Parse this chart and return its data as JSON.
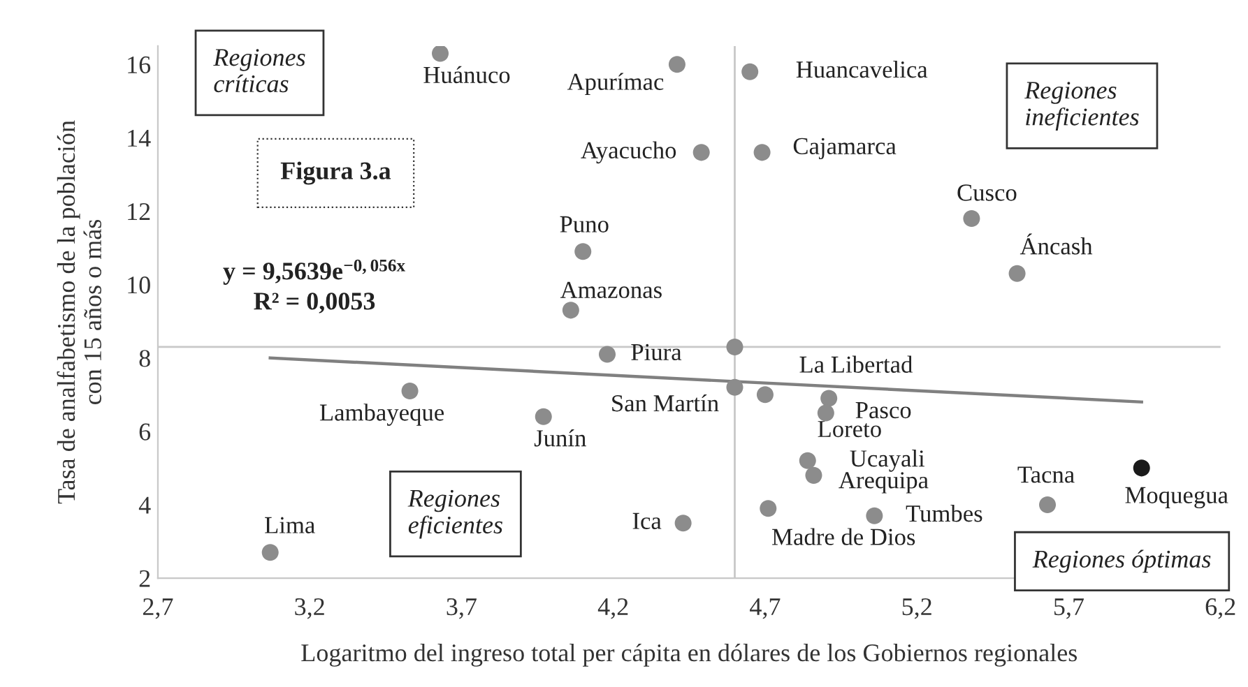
{
  "chart_data": {
    "type": "scatter",
    "xlabel": "Logaritmo del ingreso total per cápita en dólares de los Gobiernos regionales",
    "ylabel": "Tasa de analfabetismo de la población\ncon 15 años o más",
    "xlim": [
      2.7,
      6.2
    ],
    "ylim": [
      2,
      16.5
    ],
    "xticks": [
      {
        "value": 2.7,
        "label": "2,7"
      },
      {
        "value": 3.2,
        "label": "3,2"
      },
      {
        "value": 3.7,
        "label": "3,7"
      },
      {
        "value": 4.2,
        "label": "4,2"
      },
      {
        "value": 4.7,
        "label": "4,7"
      },
      {
        "value": 5.2,
        "label": "5,2"
      },
      {
        "value": 5.7,
        "label": "5,7"
      },
      {
        "value": 6.2,
        "label": "6,2"
      }
    ],
    "yticks": [
      2,
      4,
      6,
      8,
      10,
      12,
      14,
      16
    ],
    "grid": false,
    "marker": "circle",
    "series": [
      {
        "x": [
          3.63,
          4.41,
          4.49,
          4.65,
          4.69,
          4.1,
          4.06,
          4.18,
          5.38,
          5.53,
          4.6,
          4.7,
          4.91,
          4.9,
          4.84,
          4.86,
          4.71,
          5.06,
          5.63,
          5.94,
          3.53,
          3.97,
          4.43,
          3.07,
          4.6
        ],
        "values": [
          16.3,
          16.0,
          13.6,
          15.8,
          13.6,
          10.9,
          9.3,
          8.1,
          11.8,
          10.3,
          7.2,
          7.0,
          6.9,
          6.5,
          5.2,
          4.8,
          3.9,
          3.7,
          4.0,
          5.0,
          7.1,
          6.4,
          3.5,
          2.7,
          8.3
        ],
        "colors": [
          "#8c8c8c",
          "#8c8c8c",
          "#8c8c8c",
          "#8c8c8c",
          "#8c8c8c",
          "#8c8c8c",
          "#8c8c8c",
          "#8c8c8c",
          "#8c8c8c",
          "#8c8c8c",
          "#8c8c8c",
          "#8c8c8c",
          "#8c8c8c",
          "#8c8c8c",
          "#8c8c8c",
          "#8c8c8c",
          "#8c8c8c",
          "#8c8c8c",
          "#8c8c8c",
          "#1a1a1a",
          "#8c8c8c",
          "#8c8c8c",
          "#8c8c8c",
          "#8c8c8c",
          "#8c8c8c"
        ]
      },
      {
        "type": "line",
        "x": [
          3.07,
          4.5,
          5.94
        ],
        "values": [
          8.0,
          7.4,
          6.8
        ],
        "color": "#808080",
        "marker": "none"
      }
    ],
    "ref_lines": [
      {
        "axis": "x",
        "value": 4.6,
        "color": "#c8c8c8"
      },
      {
        "axis": "y",
        "value": 8.3,
        "color": "#c8c8c8"
      }
    ],
    "annotations": [
      {
        "text": "Huánuco",
        "x": 3.63,
        "y": 16.3
      },
      {
        "text": "Apurímac",
        "x": 4.41,
        "y": 16.0
      },
      {
        "text": "Ayacucho",
        "x": 4.49,
        "y": 13.6
      },
      {
        "text": "Huancavelica",
        "x": 4.65,
        "y": 15.8
      },
      {
        "text": "Cajamarca",
        "x": 4.69,
        "y": 13.6
      },
      {
        "text": "Puno",
        "x": 4.1,
        "y": 10.9
      },
      {
        "text": "Amazonas",
        "x": 4.06,
        "y": 9.3
      },
      {
        "text": "Piura",
        "x": 4.18,
        "y": 8.1
      },
      {
        "text": "Cusco",
        "x": 5.38,
        "y": 11.8
      },
      {
        "text": "Áncash",
        "x": 5.53,
        "y": 10.3
      },
      {
        "text": "San Martín",
        "x": 4.6,
        "y": 7.2
      },
      {
        "text": "La Libertad",
        "x": 4.7,
        "y": 7.0
      },
      {
        "text": "Pasco",
        "x": 4.91,
        "y": 6.9
      },
      {
        "text": "Loreto",
        "x": 4.9,
        "y": 6.5
      },
      {
        "text": "Ucayali",
        "x": 4.84,
        "y": 5.2
      },
      {
        "text": "Arequipa",
        "x": 4.86,
        "y": 4.8
      },
      {
        "text": "Madre de Dios",
        "x": 4.71,
        "y": 3.9
      },
      {
        "text": "Tumbes",
        "x": 5.06,
        "y": 3.7
      },
      {
        "text": "Tacna",
        "x": 5.63,
        "y": 4.0
      },
      {
        "text": "Moquegua",
        "x": 5.94,
        "y": 5.0
      },
      {
        "text": "Lambayeque",
        "x": 3.53,
        "y": 7.1
      },
      {
        "text": "Junín",
        "x": 3.97,
        "y": 6.4
      },
      {
        "text": "Ica",
        "x": 4.43,
        "y": 3.5
      },
      {
        "text": "Lima",
        "x": 3.07,
        "y": 2.7
      },
      "Regiones\ncríticas",
      "Figura 3.a",
      "y = 9,5639e$^{−0,056x}$\nR² = 0,0053",
      "Regiones\nineficientes",
      "Regiones\neficientes",
      "Regiones óptimas"
    ]
  }
}
